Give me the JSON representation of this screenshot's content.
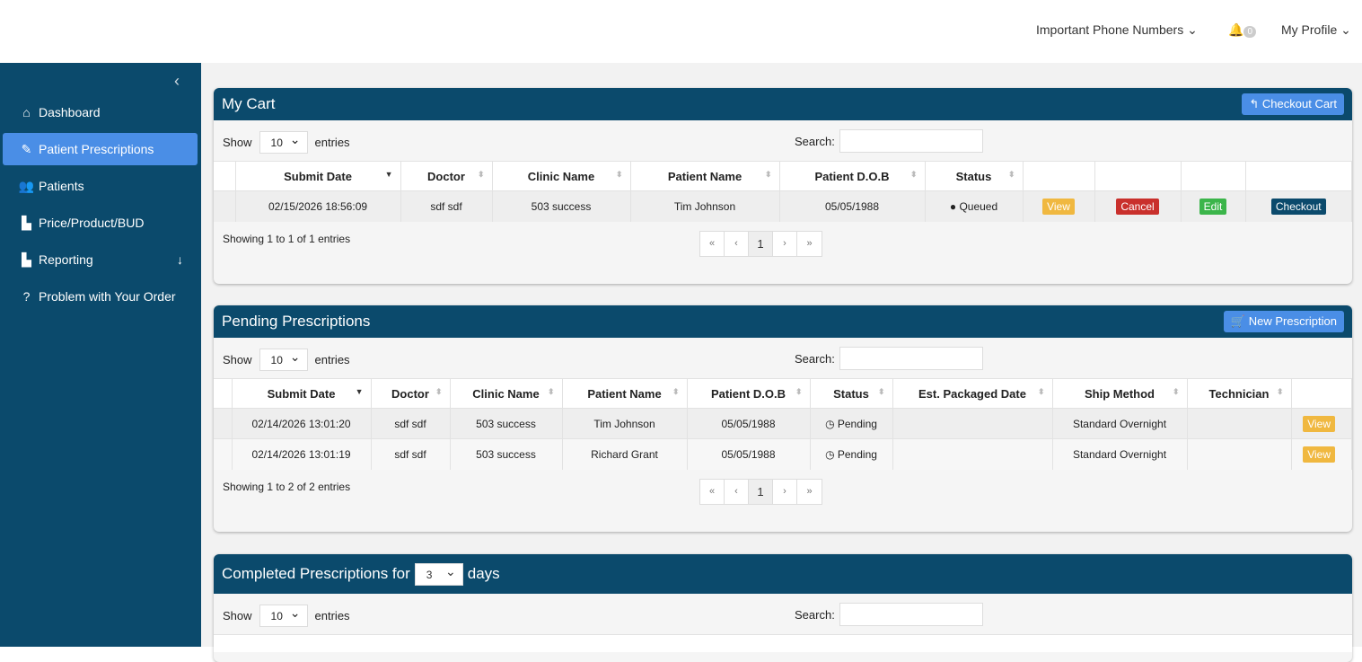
{
  "topnav": {
    "phone": "Important Phone Numbers",
    "notifications": "0",
    "profile": "My Profile"
  },
  "sidebar": {
    "items": [
      {
        "label": "Dashboard",
        "icon": "home-icon",
        "glyph": "⌂"
      },
      {
        "label": "Patient Prescriptions",
        "icon": "edit-icon",
        "glyph": "✎",
        "active": true
      },
      {
        "label": "Patients",
        "icon": "users-icon",
        "glyph": "👥"
      },
      {
        "label": "Price/Product/BUD",
        "icon": "chart-icon",
        "glyph": "▙"
      },
      {
        "label": "Reporting",
        "icon": "chart-icon",
        "glyph": "▙"
      },
      {
        "label": "Problem with Your Order",
        "icon": "question-icon",
        "glyph": "?"
      }
    ]
  },
  "common": {
    "show": "Show",
    "entries": "entries",
    "search": "Search:",
    "page_size": "10",
    "first": "«",
    "prev": "‹",
    "page": "1",
    "next": "›",
    "last": "»"
  },
  "cart": {
    "title": "My Cart",
    "button": "Checkout Cart",
    "columns": [
      "",
      "Submit Date",
      "Doctor",
      "Clinic Name",
      "Patient Name",
      "Patient D.O.B",
      "Status",
      "",
      "",
      "",
      ""
    ],
    "rows": [
      {
        "submit": "02/15/2026 18:56:09",
        "doctor": "sdf sdf",
        "clinic": "503 success",
        "patient": "Tim Johnson",
        "dob": "05/05/1988",
        "status": "Queued",
        "view": "View",
        "cancel": "Cancel",
        "edit": "Edit",
        "checkout": "Checkout"
      }
    ],
    "info": "Showing 1 to 1 of 1 entries"
  },
  "pending": {
    "title": "Pending Prescriptions",
    "button": "New Prescription",
    "columns": [
      "",
      "Submit Date",
      "Doctor",
      "Clinic Name",
      "Patient Name",
      "Patient D.O.B",
      "Status",
      "Est. Packaged Date",
      "Ship Method",
      "Technician",
      ""
    ],
    "rows": [
      {
        "submit": "02/14/2026 13:01:20",
        "doctor": "sdf sdf",
        "clinic": "503 success",
        "patient": "Tim Johnson",
        "dob": "05/05/1988",
        "status": "Pending",
        "est": "",
        "ship": "Standard Overnight",
        "tech": "",
        "view": "View"
      },
      {
        "submit": "02/14/2026 13:01:19",
        "doctor": "sdf sdf",
        "clinic": "503 success",
        "patient": "Richard Grant",
        "dob": "05/05/1988",
        "status": "Pending",
        "est": "",
        "ship": "Standard Overnight",
        "tech": "",
        "view": "View"
      }
    ],
    "info": "Showing 1 to 2 of 2 entries"
  },
  "completed": {
    "title": "Completed Prescriptions for",
    "days_value": "3",
    "days": "days"
  }
}
